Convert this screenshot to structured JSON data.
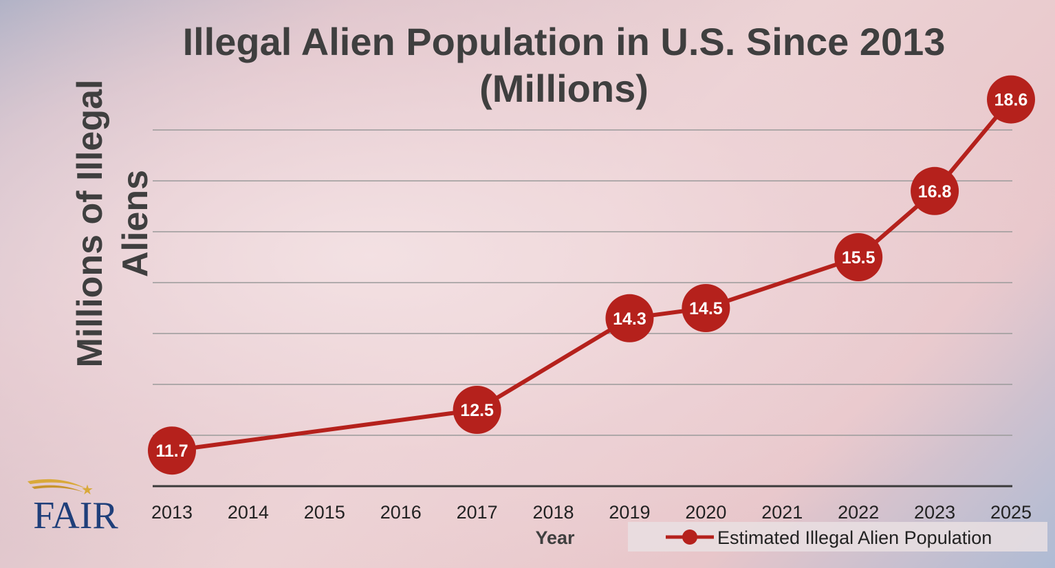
{
  "chart_data": {
    "type": "line",
    "title_lines": [
      "Illegal Alien Population in U.S. Since 2013",
      "(Millions)"
    ],
    "ylabel_lines": [
      "Millions of Illegal",
      "Aliens"
    ],
    "xlabel": "Year",
    "categories": [
      "2013",
      "2014",
      "2015",
      "2016",
      "2017",
      "2018",
      "2019",
      "2020",
      "2021",
      "2022",
      "2023",
      "2025"
    ],
    "series": [
      {
        "name": "Estimated Illegal Alien Population",
        "color": "#b5211c",
        "points": [
          {
            "x": "2013",
            "y": 11.7
          },
          {
            "x": "2017",
            "y": 12.5
          },
          {
            "x": "2019",
            "y": 14.3
          },
          {
            "x": "2020",
            "y": 14.5
          },
          {
            "x": "2022",
            "y": 15.5
          },
          {
            "x": "2023",
            "y": 16.8
          },
          {
            "x": "2025",
            "y": 18.6
          }
        ]
      }
    ],
    "ylim": [
      11.0,
      18.0
    ],
    "grid": true,
    "legend_position": "bottom-right"
  },
  "logo": {
    "text": "FAIR"
  },
  "colors": {
    "line": "#b5211c",
    "title": "#3f3f3f",
    "gridline": "#9a9a9a",
    "baseline": "#3a3a3a",
    "logo_blue": "#1f3f7a",
    "logo_gold": "#d9a93a"
  }
}
